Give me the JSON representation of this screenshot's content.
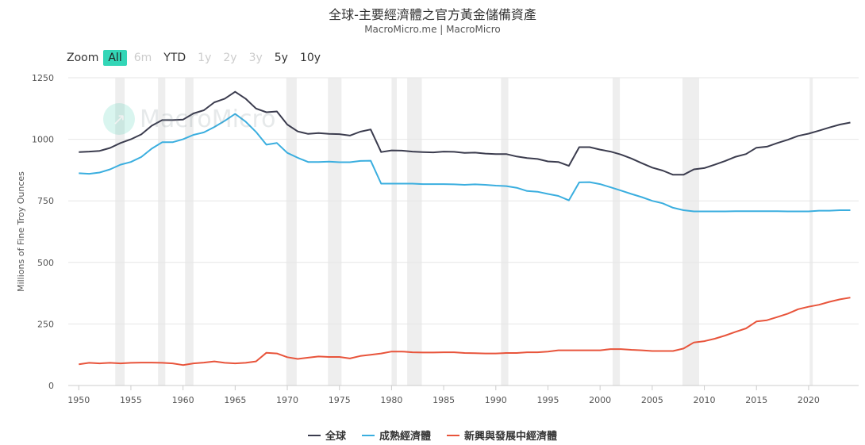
{
  "title": "全球-主要經濟體之官方黃金儲備資產",
  "subtitle": "MacroMicro.me | MacroMicro",
  "watermark": "MacroMicro",
  "zoom": {
    "label": "Zoom",
    "buttons": [
      {
        "label": "All",
        "state": "active"
      },
      {
        "label": "6m",
        "state": "disabled"
      },
      {
        "label": "YTD",
        "state": "enabled"
      },
      {
        "label": "1y",
        "state": "disabled"
      },
      {
        "label": "2y",
        "state": "disabled"
      },
      {
        "label": "3y",
        "state": "disabled"
      },
      {
        "label": "5y",
        "state": "enabled"
      },
      {
        "label": "10y",
        "state": "enabled"
      }
    ]
  },
  "colors": {
    "recession_band": "#eeeeee",
    "grid": "#e6e6e6",
    "axis": "#cccccc",
    "accent": "#33d6b7"
  },
  "chart_data": {
    "type": "line",
    "ylabel": "Millions of Fine Troy Ounces",
    "xlim": [
      1949.6,
      2024.8
    ],
    "ylim": [
      0,
      1250
    ],
    "xticks": [
      1950,
      1955,
      1960,
      1965,
      1970,
      1975,
      1980,
      1985,
      1990,
      1995,
      2000,
      2005,
      2010,
      2015,
      2020
    ],
    "yticks": [
      0,
      250,
      500,
      750,
      1000,
      1250
    ],
    "grid": "horizontal",
    "legend_position": "bottom-center",
    "recession_bands": [
      [
        1953.5,
        1954.4
      ],
      [
        1957.6,
        1958.3
      ],
      [
        1960.2,
        1961.0
      ],
      [
        1969.9,
        1970.9
      ],
      [
        1973.9,
        1975.2
      ],
      [
        1980.0,
        1980.5
      ],
      [
        1981.5,
        1982.9
      ],
      [
        1990.5,
        1991.2
      ],
      [
        2001.2,
        2001.9
      ],
      [
        2007.9,
        2009.5
      ],
      [
        2020.1,
        2020.4
      ]
    ],
    "x": [
      1950,
      1951,
      1952,
      1953,
      1954,
      1955,
      1956,
      1957,
      1958,
      1959,
      1960,
      1961,
      1962,
      1963,
      1964,
      1965,
      1966,
      1967,
      1968,
      1969,
      1970,
      1971,
      1972,
      1973,
      1974,
      1975,
      1976,
      1977,
      1978,
      1979,
      1980,
      1981,
      1982,
      1983,
      1984,
      1985,
      1986,
      1987,
      1988,
      1989,
      1990,
      1991,
      1992,
      1993,
      1994,
      1995,
      1996,
      1997,
      1998,
      1999,
      2000,
      2001,
      2002,
      2003,
      2004,
      2005,
      2006,
      2007,
      2008,
      2009,
      2010,
      2011,
      2012,
      2013,
      2014,
      2015,
      2016,
      2017,
      2018,
      2019,
      2020,
      2021,
      2022,
      2023,
      2024
    ],
    "series": [
      {
        "name": "全球",
        "color": "#3b3c4e",
        "values": [
          948,
          950,
          953,
          965,
          985,
          1000,
          1020,
          1055,
          1078,
          1078,
          1080,
          1105,
          1118,
          1150,
          1165,
          1193,
          1165,
          1125,
          1110,
          1113,
          1060,
          1032,
          1022,
          1025,
          1022,
          1021,
          1015,
          1031,
          1040,
          948,
          955,
          954,
          950,
          948,
          947,
          950,
          949,
          945,
          946,
          942,
          940,
          940,
          930,
          924,
          920,
          910,
          908,
          892,
          968,
          968,
          958,
          950,
          938,
          922,
          903,
          885,
          873,
          856,
          856,
          878,
          883,
          897,
          912,
          929,
          940,
          966,
          970,
          985,
          998,
          1014,
          1023,
          1035,
          1048,
          1060,
          1068
        ]
      },
      {
        "name": "成熟經濟體",
        "color": "#3aaedf",
        "values": [
          862,
          860,
          865,
          878,
          897,
          908,
          928,
          962,
          988,
          988,
          1000,
          1018,
          1028,
          1050,
          1075,
          1103,
          1072,
          1030,
          978,
          985,
          945,
          925,
          908,
          908,
          909,
          907,
          907,
          912,
          913,
          820,
          820,
          820,
          820,
          818,
          818,
          818,
          817,
          815,
          817,
          815,
          812,
          810,
          803,
          790,
          787,
          778,
          770,
          752,
          825,
          826,
          818,
          805,
          792,
          778,
          765,
          750,
          740,
          722,
          712,
          707,
          707,
          707,
          707,
          708,
          708,
          708,
          708,
          708,
          707,
          707,
          707,
          710,
          710,
          712,
          712
        ]
      },
      {
        "name": "新興與發展中經濟體",
        "color": "#e8543b",
        "values": [
          86,
          92,
          90,
          92,
          90,
          92,
          93,
          93,
          92,
          90,
          83,
          90,
          93,
          98,
          92,
          90,
          92,
          98,
          133,
          130,
          115,
          108,
          113,
          118,
          116,
          116,
          110,
          120,
          125,
          130,
          138,
          138,
          135,
          134,
          134,
          135,
          135,
          132,
          131,
          130,
          130,
          132,
          132,
          135,
          135,
          138,
          143,
          143,
          143,
          143,
          143,
          148,
          148,
          145,
          143,
          140,
          140,
          140,
          150,
          175,
          180,
          190,
          203,
          218,
          232,
          260,
          265,
          278,
          292,
          310,
          320,
          328,
          340,
          350,
          357
        ]
      }
    ]
  }
}
